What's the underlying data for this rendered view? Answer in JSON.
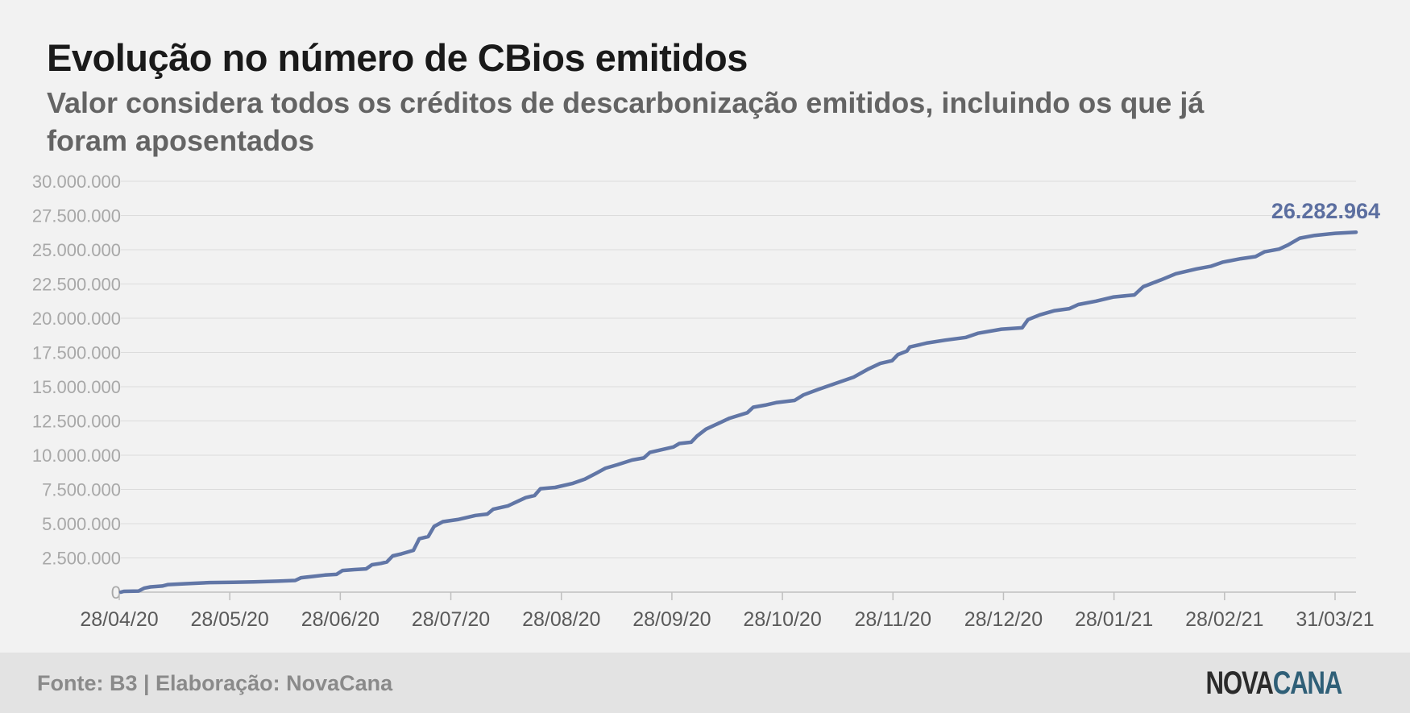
{
  "title": "Evolução no número de CBios emitidos",
  "subtitle": "Valor considera todos os créditos de descarbonização emitidos, incluindo os que já foram aposentados",
  "footer": {
    "source": "Fonte: B3 | Elaboração: NovaCana",
    "logo_part1": "NOVA",
    "logo_part2": "CANA"
  },
  "colors": {
    "line": "#6176a6",
    "grid": "#dcdcdc",
    "tick_text": "#a8a8a8",
    "x_tick_text": "#5a5a5a",
    "annotation": "#5c6fa0"
  },
  "chart_data": {
    "type": "line",
    "title": "Evolução no número de CBios emitidos",
    "xlabel": "",
    "ylabel": "",
    "ylim": [
      0,
      30000000
    ],
    "grid": true,
    "y_ticks": [
      {
        "value": 0,
        "label": "0"
      },
      {
        "value": 2500000,
        "label": "2.500.000"
      },
      {
        "value": 5000000,
        "label": "5.000.000"
      },
      {
        "value": 7500000,
        "label": "7.500.000"
      },
      {
        "value": 10000000,
        "label": "10.000.000"
      },
      {
        "value": 12500000,
        "label": "12.500.000"
      },
      {
        "value": 15000000,
        "label": "15.000.000"
      },
      {
        "value": 17500000,
        "label": "17.500.000"
      },
      {
        "value": 20000000,
        "label": "20.000.000"
      },
      {
        "value": 22500000,
        "label": "22.500.000"
      },
      {
        "value": 25000000,
        "label": "25.000.000"
      },
      {
        "value": 27500000,
        "label": "27.500.000"
      },
      {
        "value": 30000000,
        "label": "30.000.000"
      }
    ],
    "x_ticks": [
      {
        "date": "2020-04-28",
        "label": "28/04/20"
      },
      {
        "date": "2020-05-28",
        "label": "28/05/20"
      },
      {
        "date": "2020-06-28",
        "label": "28/06/20"
      },
      {
        "date": "2020-07-28",
        "label": "28/07/20"
      },
      {
        "date": "2020-08-28",
        "label": "28/08/20"
      },
      {
        "date": "2020-09-28",
        "label": "28/09/20"
      },
      {
        "date": "2020-10-28",
        "label": "28/10/20"
      },
      {
        "date": "2020-11-28",
        "label": "28/11/20"
      },
      {
        "date": "2020-12-28",
        "label": "28/12/20"
      },
      {
        "date": "2021-01-28",
        "label": "28/01/21"
      },
      {
        "date": "2021-02-28",
        "label": "28/02/21"
      },
      {
        "date": "2021-03-31",
        "label": "31/03/21"
      }
    ],
    "series": [
      {
        "values": [
          [
            "2020-04-28",
            0
          ],
          [
            "2020-04-29",
            60000
          ],
          [
            "2020-05-04",
            80000
          ],
          [
            "2020-05-06",
            300000
          ],
          [
            "2020-05-08",
            380000
          ],
          [
            "2020-05-12",
            450000
          ],
          [
            "2020-05-14",
            550000
          ],
          [
            "2020-05-20",
            620000
          ],
          [
            "2020-05-28",
            700000
          ],
          [
            "2020-06-05",
            720000
          ],
          [
            "2020-06-12",
            750000
          ],
          [
            "2020-06-20",
            800000
          ],
          [
            "2020-06-26",
            850000
          ],
          [
            "2020-06-28",
            1050000
          ],
          [
            "2020-07-02",
            1150000
          ],
          [
            "2020-07-06",
            1250000
          ],
          [
            "2020-07-10",
            1300000
          ],
          [
            "2020-07-12",
            1580000
          ],
          [
            "2020-07-16",
            1650000
          ],
          [
            "2020-07-20",
            1700000
          ],
          [
            "2020-07-22",
            2000000
          ],
          [
            "2020-07-25",
            2100000
          ],
          [
            "2020-07-27",
            2200000
          ],
          [
            "2020-07-29",
            2650000
          ],
          [
            "2020-08-01",
            2800000
          ],
          [
            "2020-08-05",
            3050000
          ],
          [
            "2020-08-07",
            3900000
          ],
          [
            "2020-08-10",
            4050000
          ],
          [
            "2020-08-12",
            4800000
          ],
          [
            "2020-08-15",
            5150000
          ],
          [
            "2020-08-20",
            5300000
          ],
          [
            "2020-08-26",
            5600000
          ],
          [
            "2020-08-30",
            5700000
          ],
          [
            "2020-09-01",
            6050000
          ],
          [
            "2020-09-06",
            6300000
          ],
          [
            "2020-09-12",
            6900000
          ],
          [
            "2020-09-15",
            7050000
          ],
          [
            "2020-09-17",
            7550000
          ],
          [
            "2020-09-22",
            7650000
          ],
          [
            "2020-09-28",
            7950000
          ],
          [
            "2020-10-02",
            8250000
          ],
          [
            "2020-10-06",
            8700000
          ],
          [
            "2020-10-09",
            9050000
          ],
          [
            "2020-10-13",
            9300000
          ],
          [
            "2020-10-18",
            9650000
          ],
          [
            "2020-10-22",
            9800000
          ],
          [
            "2020-10-24",
            10200000
          ],
          [
            "2020-10-28",
            10400000
          ],
          [
            "2020-11-01",
            10600000
          ],
          [
            "2020-11-03",
            10850000
          ],
          [
            "2020-11-07",
            10950000
          ],
          [
            "2020-11-09",
            11400000
          ],
          [
            "2020-11-12",
            11900000
          ],
          [
            "2020-11-16",
            12300000
          ],
          [
            "2020-11-20",
            12700000
          ],
          [
            "2020-11-26",
            13100000
          ],
          [
            "2020-11-28",
            13500000
          ],
          [
            "2020-12-02",
            13650000
          ],
          [
            "2020-12-06",
            13850000
          ],
          [
            "2020-12-12",
            14000000
          ],
          [
            "2020-12-15",
            14400000
          ],
          [
            "2020-12-20",
            14800000
          ],
          [
            "2020-12-26",
            15250000
          ],
          [
            "2021-01-01",
            15700000
          ],
          [
            "2021-01-06",
            16300000
          ],
          [
            "2021-01-10",
            16700000
          ],
          [
            "2021-01-14",
            16900000
          ],
          [
            "2021-01-16",
            17350000
          ],
          [
            "2021-01-19",
            17600000
          ],
          [
            "2021-01-20",
            17900000
          ],
          [
            "2021-01-26",
            18200000
          ],
          [
            "2021-02-01",
            18400000
          ],
          [
            "2021-02-08",
            18600000
          ],
          [
            "2021-02-12",
            18900000
          ],
          [
            "2021-02-20",
            19200000
          ],
          [
            "2021-02-27",
            19300000
          ],
          [
            "2021-03-01",
            19900000
          ],
          [
            "2021-03-05",
            20250000
          ],
          [
            "2021-03-10",
            20550000
          ],
          [
            "2021-03-15",
            20700000
          ],
          [
            "2021-03-18",
            21000000
          ],
          [
            "2021-03-24",
            21250000
          ],
          [
            "2021-03-30",
            21550000
          ],
          [
            "2021-04-06",
            21700000
          ],
          [
            "2021-04-09",
            22300000
          ],
          [
            "2021-04-15",
            22800000
          ],
          [
            "2021-04-20",
            23250000
          ],
          [
            "2021-04-27",
            23600000
          ],
          [
            "2021-05-02",
            23800000
          ],
          [
            "2021-05-06",
            24100000
          ],
          [
            "2021-05-12",
            24350000
          ],
          [
            "2021-05-17",
            24500000
          ],
          [
            "2021-05-20",
            24850000
          ],
          [
            "2021-05-25",
            25050000
          ],
          [
            "2021-05-28",
            25350000
          ],
          [
            "2021-06-01",
            25850000
          ],
          [
            "2021-06-06",
            26050000
          ],
          [
            "2021-06-13",
            26200000
          ],
          [
            "2021-06-20",
            26282964
          ]
        ]
      }
    ],
    "annotations": [
      {
        "text": "26.282.964",
        "value": 26282964,
        "date": "2021-06-20"
      }
    ]
  }
}
